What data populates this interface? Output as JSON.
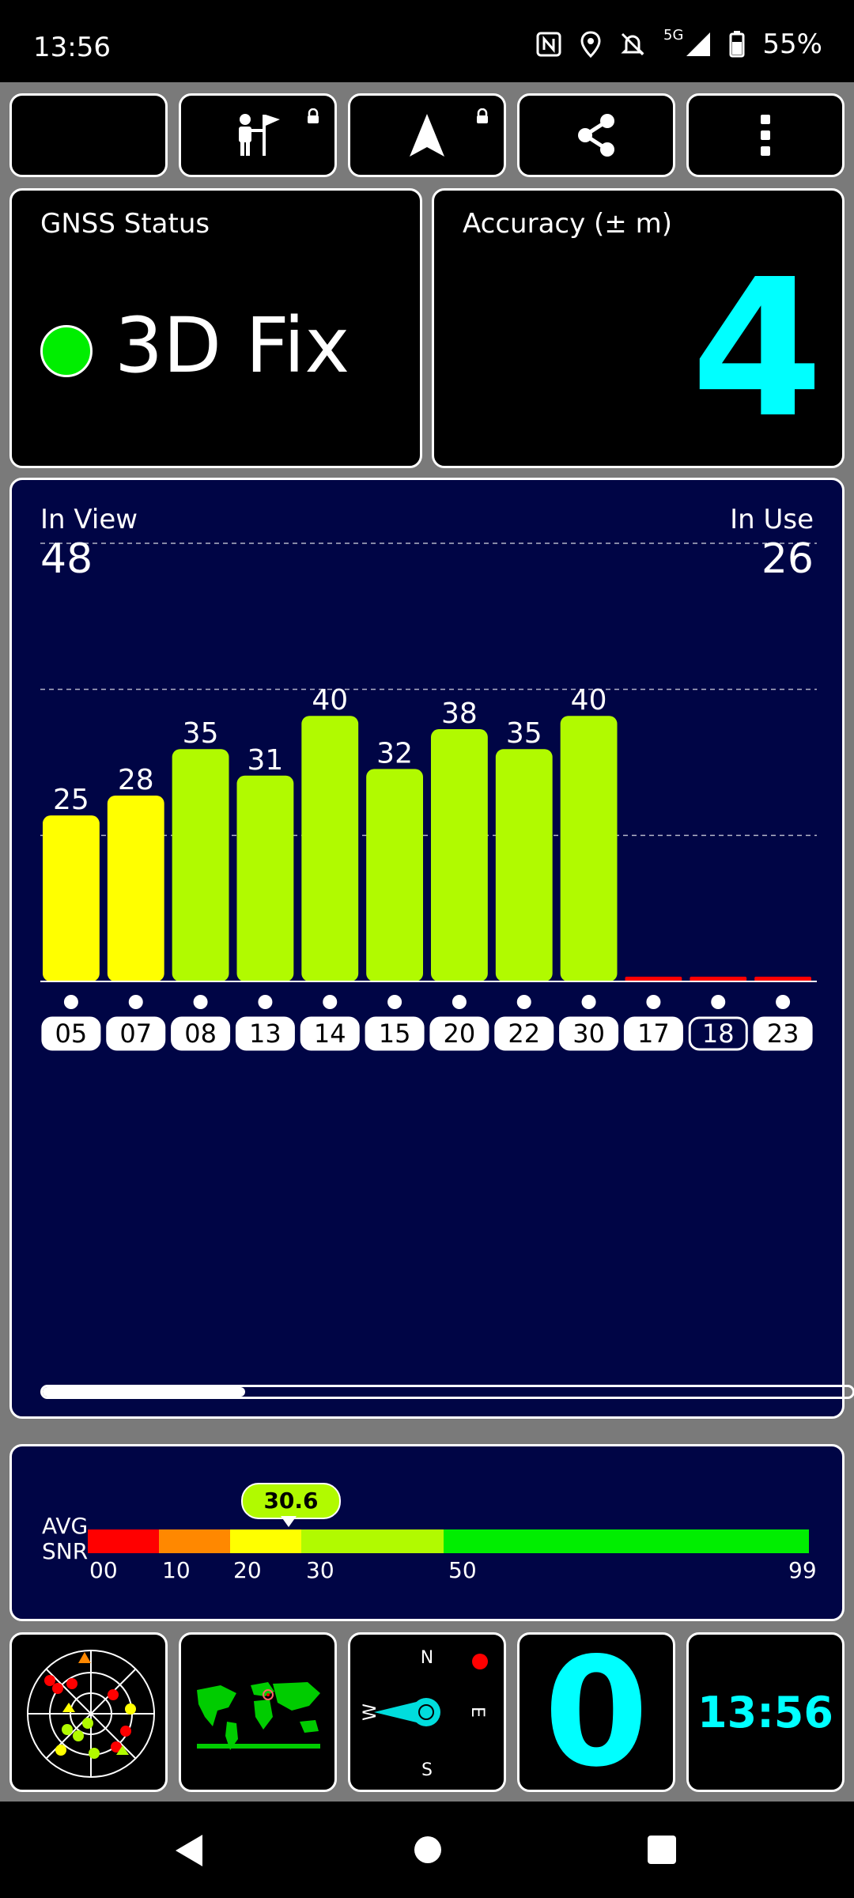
{
  "status_bar": {
    "time": "13:56",
    "network": "5G",
    "battery": "55%",
    "icons": [
      "nfc-icon",
      "location-icon",
      "alarm-off-icon",
      "signal-icon",
      "battery-icon"
    ]
  },
  "toolbar": {
    "buttons": [
      {
        "name": "night-mode-button",
        "icon": "moon-icon"
      },
      {
        "name": "waypoint-button",
        "icon": "person-flag-icon",
        "locked": true
      },
      {
        "name": "navigation-button",
        "icon": "navigation-arrow-icon",
        "locked": true
      },
      {
        "name": "share-button",
        "icon": "share-icon"
      },
      {
        "name": "more-options-button",
        "icon": "more-vert-icon"
      }
    ]
  },
  "gnss_status": {
    "label": "GNSS Status",
    "fix_text": "3D Fix",
    "fix_color": "#00ee00"
  },
  "accuracy": {
    "label": "Accuracy (± m)",
    "value": "4",
    "color": "#00ffff"
  },
  "satellites": {
    "in_view_label": "In View",
    "in_view": "48",
    "in_use_label": "In Use",
    "in_use": "26"
  },
  "chart_data": {
    "type": "bar",
    "categories": [
      "05",
      "07",
      "08",
      "13",
      "14",
      "15",
      "20",
      "22",
      "30",
      "17",
      "18",
      "23"
    ],
    "values": [
      25,
      28,
      35,
      31,
      40,
      32,
      38,
      35,
      40,
      0,
      0,
      0
    ],
    "labels": [
      "25",
      "28",
      "35",
      "31",
      "40",
      "32",
      "38",
      "35",
      "40",
      "",
      "",
      ""
    ],
    "colors": [
      "#ffff00",
      "#ffff00",
      "#b1fa00",
      "#b1fa00",
      "#b1fa00",
      "#b1fa00",
      "#b1fa00",
      "#b1fa00",
      "#b1fa00",
      "#ff0000",
      "#ff0000",
      "#ff0000"
    ],
    "ylim": [
      0,
      66
    ],
    "gridlines": [
      22,
      44,
      66
    ],
    "outlined_category": "18",
    "scroll_position": 0.25
  },
  "snr": {
    "label_line1": "AVG",
    "label_line2": "SNR",
    "value": "30.6",
    "ticks": [
      "00",
      "10",
      "20",
      "30",
      "50",
      "99"
    ],
    "segments": [
      {
        "color": "#ff0000",
        "from": 0,
        "to": 10
      },
      {
        "color": "#ff8800",
        "from": 10,
        "to": 20
      },
      {
        "color": "#ffff00",
        "from": 20,
        "to": 30
      },
      {
        "color": "#b1fa00",
        "from": 30,
        "to": 50
      },
      {
        "color": "#00ee00",
        "from": 50,
        "to": 99
      }
    ]
  },
  "bottom_tiles": {
    "sky_view": "sky-plot-icon",
    "world_map": "world-map-icon",
    "compass": {
      "n": "N",
      "e": "E",
      "s": "S",
      "w": "W"
    },
    "speed": "0",
    "clock": "13:56"
  },
  "nav_bar": [
    "back-icon",
    "home-icon",
    "recents-icon"
  ]
}
